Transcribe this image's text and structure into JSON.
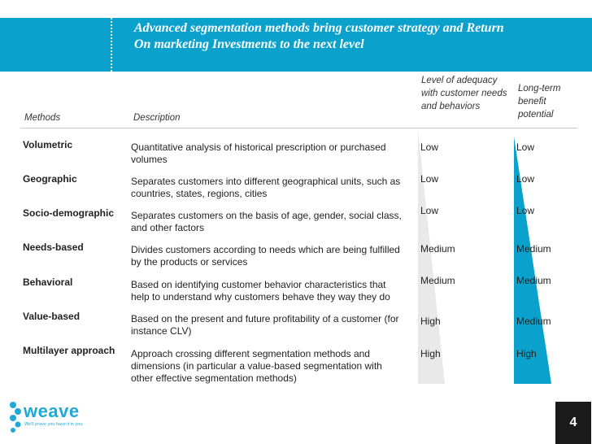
{
  "title": "Advanced segmentation methods bring customer strategy and Return On marketing Investments to the next level",
  "headers": {
    "methods": "Methods",
    "description": "Description",
    "adequacy": "Level of adequacy with customer needs and behaviors",
    "benefit": "Long-term benefit potential"
  },
  "rows": [
    {
      "method": "Volumetric",
      "description": "Quantitative analysis of historical prescription or purchased volumes",
      "adequacy": "Low",
      "benefit": "Low"
    },
    {
      "method": "Geographic",
      "description": "Separates customers into different geographical units, such as countries, states, regions, cities",
      "adequacy": "Low",
      "benefit": "Low"
    },
    {
      "method": "Socio-demographic",
      "description": "Separates customers on the basis of age, gender, social class, and other factors",
      "adequacy": "Low",
      "benefit": "Low"
    },
    {
      "method": "Needs-based",
      "description": "Divides customers according to needs which are being fulfilled by the products or services",
      "adequacy": "Medium",
      "benefit": "Medium"
    },
    {
      "method": "Behavioral",
      "description": "Based on identifying customer behavior characteristics that help to understand why customers behave they way they do",
      "adequacy": "Medium",
      "benefit": "Medium"
    },
    {
      "method": "Value-based",
      "description": "Based on the present and future profitability of a customer (for instance CLV)",
      "adequacy": "High",
      "benefit": "Medium"
    },
    {
      "method": "Multilayer approach",
      "description": "Approach crossing different segmentation methods and dimensions (in particular a value-based segmentation with other effective segmentation methods)",
      "adequacy": "High",
      "benefit": "High"
    }
  ],
  "logo": {
    "name": "weave",
    "tagline": "We'll prove you have it in you"
  },
  "page_number": "4",
  "colors": {
    "banner": "#0aa1cc",
    "triangle_grey": "#e9e9e9",
    "triangle_blue": "#0aa1cc"
  }
}
